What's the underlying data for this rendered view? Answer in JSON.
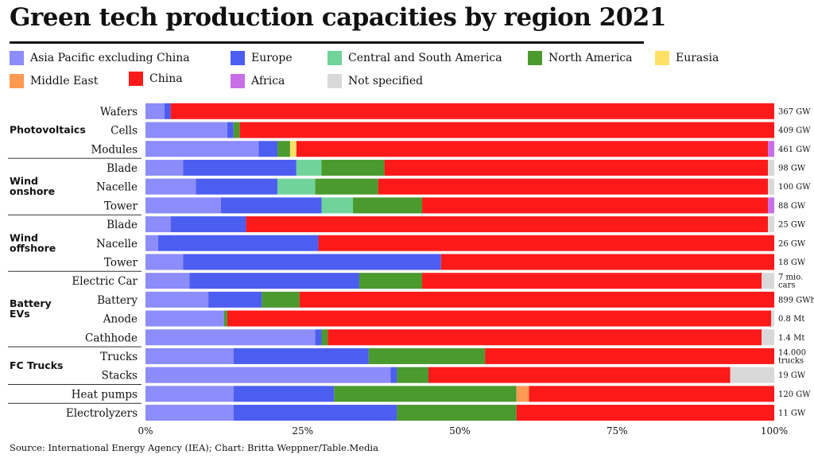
{
  "title": "Green tech production capacities by region 2021",
  "source": "Source: International Energy Agency (IEA); Chart: Britta Weppner/Table.Media",
  "chart_data": {
    "type": "bar",
    "orientation": "horizontal",
    "stacked": true,
    "normalized": true,
    "title": "Green tech production capacities by region 2021",
    "xlim": [
      0,
      100
    ],
    "x_ticks": [
      "0%",
      "25%",
      "50%",
      "75%",
      "100%"
    ],
    "legend": "top",
    "groups": [
      {
        "label": "Photovoltaics",
        "rows": [
          0,
          1,
          2
        ]
      },
      {
        "label": "Wind onshore",
        "rows": [
          3,
          4,
          5
        ]
      },
      {
        "label": "Wind offshore",
        "rows": [
          6,
          7,
          8
        ]
      },
      {
        "label": "Battery EVs",
        "rows": [
          9,
          10,
          11,
          12
        ]
      },
      {
        "label": "FC Trucks",
        "rows": [
          13,
          14
        ]
      },
      {
        "label": "",
        "rows": [
          15
        ]
      },
      {
        "label": "",
        "rows": [
          16
        ]
      }
    ],
    "categories": [
      "Wafers",
      "Cells",
      "Modules",
      "Blade",
      "Nacelle",
      "Tower",
      "Blade",
      "Nacelle",
      "Tower",
      "Electric Car",
      "Battery",
      "Anode",
      "Cathhode",
      "Trucks",
      "Stacks",
      "Heat pumps",
      "Electrolyzers"
    ],
    "totals": [
      "367 GW",
      "409 GW",
      "461 GW",
      "98 GW",
      "100 GW",
      "88 GW",
      "25 GW",
      "26 GW",
      "18 GW",
      "7 mio. cars",
      "899 GWh",
      "0.8 Mt",
      "1.4 Mt",
      "14.000 trucks",
      "19 GW",
      "120 GW",
      "11 GW"
    ],
    "series": [
      {
        "name": "Asia Pacific excluding China",
        "color": "#8c8cfa",
        "values": [
          3,
          13,
          18,
          6,
          8,
          12,
          4,
          2,
          6,
          7,
          10,
          12.5,
          27,
          14,
          39,
          14,
          14
        ]
      },
      {
        "name": "Europe",
        "color": "#4c5ef0",
        "values": [
          1,
          1,
          3,
          18,
          13,
          16,
          12,
          25.5,
          41,
          27,
          8.5,
          0,
          1,
          21.5,
          1,
          16,
          26
        ]
      },
      {
        "name": "Central and South America",
        "color": "#6fd39a",
        "values": [
          0,
          0,
          0,
          4,
          6,
          5,
          0,
          0,
          0,
          0,
          0,
          0,
          0,
          0,
          0,
          0,
          0
        ]
      },
      {
        "name": "North America",
        "color": "#4a9a2e",
        "values": [
          0,
          1,
          2,
          10,
          10,
          11,
          0,
          0,
          0,
          10,
          6,
          0.5,
          1,
          18.5,
          5,
          29,
          19
        ]
      },
      {
        "name": "Eurasia",
        "color": "#ffe066",
        "values": [
          0,
          0,
          1,
          0,
          0,
          0,
          0,
          0,
          0,
          0,
          0,
          0,
          0,
          0,
          0,
          0,
          0
        ]
      },
      {
        "name": "Middle East",
        "color": "#ff9a52",
        "values": [
          0,
          0,
          0,
          0,
          0,
          0,
          0,
          0,
          0,
          0,
          0,
          0,
          0,
          0,
          0,
          2,
          0
        ]
      },
      {
        "name": "China",
        "color": "#ff1a1a",
        "values": [
          96,
          85,
          75,
          61,
          62,
          55,
          83,
          72.5,
          53,
          54,
          75.5,
          86.5,
          69,
          46,
          48,
          39,
          41
        ]
      },
      {
        "name": "Africa",
        "color": "#c86ee6",
        "values": [
          0,
          0,
          1,
          0,
          0,
          1,
          0,
          0,
          0,
          0,
          0,
          0,
          0,
          0,
          0,
          0,
          0
        ]
      },
      {
        "name": "Not specified",
        "color": "#d9d9d9",
        "values": [
          0,
          0,
          0,
          1,
          1,
          0,
          1,
          0,
          0,
          2,
          0,
          0.5,
          2,
          0,
          7,
          0,
          0
        ]
      }
    ]
  }
}
